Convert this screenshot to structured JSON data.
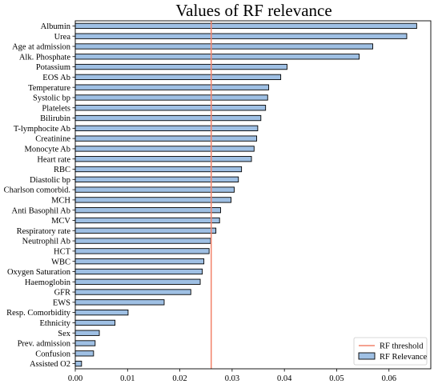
{
  "chart_data": {
    "type": "bar",
    "orientation": "horizontal",
    "title": "Values of RF relevance",
    "xlabel": "",
    "ylabel": "",
    "xlim": [
      0.0,
      0.068
    ],
    "x_ticks": [
      0.0,
      0.01,
      0.02,
      0.03,
      0.04,
      0.05,
      0.06
    ],
    "x_tick_labels": [
      "0.00",
      "0.01",
      "0.02",
      "0.03",
      "0.04",
      "0.05",
      "0.06"
    ],
    "categories": [
      "Albumin",
      "Urea",
      "Age at admission",
      "Alk. Phosphate",
      "Potassium",
      "EOS Ab",
      "Temperature",
      "Systolic bp",
      "Platelets",
      "Bilirubin",
      "T-lymphocite Ab",
      "Creatinine",
      "Monocyte Ab",
      "Heart rate",
      "RBC",
      "Diastolic bp",
      "Charlson comorbid.",
      "MCH",
      "Anti Basophil Ab",
      "MCV",
      "Respiratory rate",
      "Neutrophil Ab",
      "HCT",
      "WBC",
      "Oxygen Saturation",
      "Haemoglobin",
      "GFR",
      "EWS",
      "Resp. Comorbidity",
      "Ethnicity",
      "Sex",
      "Prev. admission",
      "Confusion",
      "Assisted O2"
    ],
    "series": [
      {
        "name": "RF Relevance",
        "values": [
          0.0653,
          0.0634,
          0.0569,
          0.0543,
          0.0405,
          0.0393,
          0.037,
          0.0368,
          0.0364,
          0.0355,
          0.0349,
          0.0347,
          0.0342,
          0.0337,
          0.0318,
          0.0312,
          0.0304,
          0.0298,
          0.0278,
          0.0276,
          0.0269,
          0.0259,
          0.0256,
          0.0246,
          0.0243,
          0.0239,
          0.0221,
          0.017,
          0.0101,
          0.0076,
          0.0046,
          0.0038,
          0.0035,
          0.0012
        ]
      }
    ],
    "threshold": {
      "name": "RF threshold",
      "value": 0.026
    },
    "legend_position": "bottom-right",
    "grid": false,
    "colors": {
      "bar_fill": "#9fc0e4",
      "bar_edge": "#000000",
      "threshold_line": "#f2836b"
    }
  }
}
